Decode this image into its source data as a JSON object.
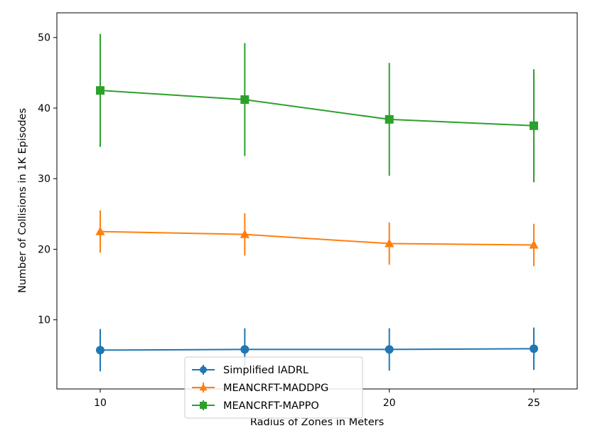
{
  "chart_data": {
    "type": "line",
    "title": "",
    "xlabel": "Radius of Zones in Meters",
    "ylabel": "Number of Collisions in 1K Episodes",
    "x": [
      10,
      15,
      20,
      25
    ],
    "xticks": [
      10,
      20,
      25
    ],
    "yticks": [
      10,
      20,
      30,
      40,
      50
    ],
    "xlim": [
      8.5,
      26.5
    ],
    "ylim": [
      0.2,
      53.5
    ],
    "legend_position": "lower-center",
    "series": [
      {
        "name": "Simplified IADRL",
        "color": "#1f77b4",
        "marker": "circle",
        "values": [
          5.7,
          5.8,
          5.8,
          5.9
        ],
        "errors": [
          3.0,
          3.0,
          3.0,
          3.0
        ]
      },
      {
        "name": "MEANCRFT-MADDPG",
        "color": "#ff7f0e",
        "marker": "triangle",
        "values": [
          22.5,
          22.1,
          20.8,
          20.6
        ],
        "errors": [
          3.0,
          3.0,
          3.0,
          3.0
        ]
      },
      {
        "name": "MEANCRFT-MAPPO",
        "color": "#2ca02c",
        "marker": "square",
        "values": [
          42.5,
          41.2,
          38.4,
          37.5
        ],
        "errors": [
          8.0,
          8.0,
          8.0,
          8.0
        ]
      }
    ]
  }
}
